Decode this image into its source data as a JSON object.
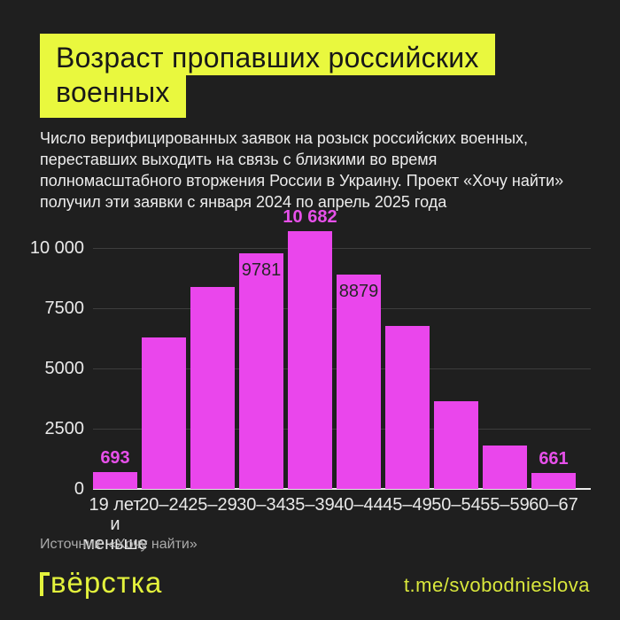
{
  "background": "#1f1f1f",
  "colors": {
    "accent_yellow": "#e9f83e",
    "footer_yellow": "#d9e73c",
    "bar_magenta": "#ea46ec",
    "magenta_label": "#e750ea",
    "inside_label_dark": "#262626",
    "text_white": "#ededed",
    "grid_gray": "#3d3d3d",
    "axis_white": "#ebebeb",
    "source_gray": "#aaaaaa"
  },
  "title": {
    "lines": [
      "Возраст пропавших российских",
      "военных"
    ]
  },
  "subtitle": {
    "lines": [
      "Число верифицированных заявок на розыск российских военных,",
      "переставших выходить на связь с близкими во время",
      "полномасштабного вторжения России в Украину. Проект «Хочу найти»",
      "получил эти заявки с января 2024 по апрель 2025 года"
    ]
  },
  "chart_data": {
    "type": "bar",
    "title": "Возраст пропавших российских военных",
    "xlabel": "",
    "ylabel": "",
    "grid": true,
    "legend": false,
    "ylim": [
      0,
      10682
    ],
    "bar_color": "#ea46ec",
    "categories": [
      "19 лет и меньше",
      "20–24",
      "25–29",
      "30–34",
      "35–39",
      "40–44",
      "45–49",
      "50–54",
      "55–59",
      "60–67"
    ],
    "yticks": [
      {
        "value": 0,
        "label": "0"
      },
      {
        "value": 2500,
        "label": "2500"
      },
      {
        "value": 5000,
        "label": "5000"
      },
      {
        "value": 7500,
        "label": "7500"
      },
      {
        "value": 10000,
        "label": "10 000"
      }
    ],
    "bars": [
      {
        "category_lines": [
          "19 лет",
          "и меньше"
        ],
        "value": 693,
        "label": "693",
        "label_placement": "above"
      },
      {
        "category_lines": [
          "20–24"
        ],
        "value": 6300,
        "label": null,
        "label_placement": null
      },
      {
        "category_lines": [
          "25–29"
        ],
        "value": 8400,
        "label": null,
        "label_placement": null
      },
      {
        "category_lines": [
          "30–34"
        ],
        "value": 9781,
        "label": "9781",
        "label_placement": "inside"
      },
      {
        "category_lines": [
          "35–39"
        ],
        "value": 10682,
        "label": "10 682",
        "label_placement": "above"
      },
      {
        "category_lines": [
          "40–44"
        ],
        "value": 8879,
        "label": "8879",
        "label_placement": "inside"
      },
      {
        "category_lines": [
          "45–49"
        ],
        "value": 6750,
        "label": null,
        "label_placement": null
      },
      {
        "category_lines": [
          "50–54"
        ],
        "value": 3650,
        "label": null,
        "label_placement": null
      },
      {
        "category_lines": [
          "55–59"
        ],
        "value": 1800,
        "label": null,
        "label_placement": null
      },
      {
        "category_lines": [
          "60–67"
        ],
        "value": 661,
        "label": "661",
        "label_placement": "above"
      }
    ]
  },
  "source": "Источник: «Хочу найти»",
  "footer": {
    "logo": "вёрстка",
    "link": "t.me/svobodnieslova"
  }
}
